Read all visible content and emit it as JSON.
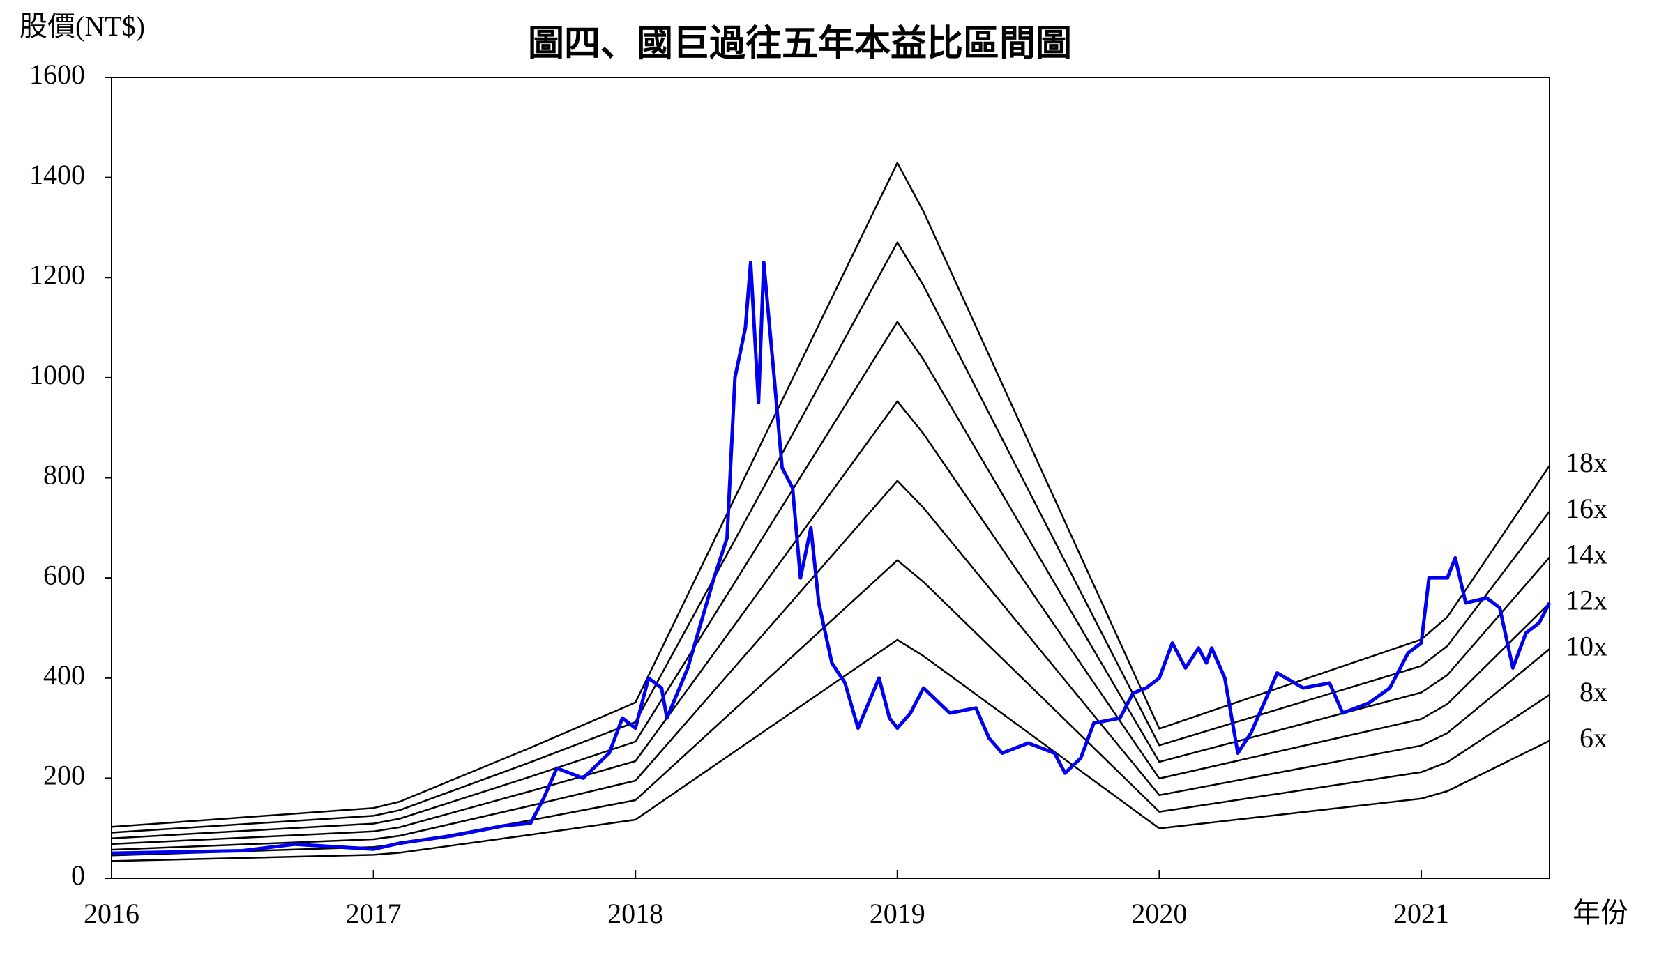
{
  "chart_data": {
    "type": "line",
    "title": "圖四、國巨過往五年本益比區間圖",
    "y_label": "股價(NT$)",
    "x_label": "年份",
    "xlim": [
      2016,
      2021.49
    ],
    "xticks": [
      2016,
      2017,
      2018,
      2019,
      2020,
      2021
    ],
    "ylim": [
      0,
      1600
    ],
    "yticks": [
      0,
      200,
      400,
      600,
      800,
      1000,
      1200,
      1400,
      1600
    ],
    "grid": false,
    "series": [
      {
        "name": "18x",
        "color": "#000000",
        "x": [
          2016,
          2017,
          2017.1,
          2017.6,
          2018,
          2019,
          2019.1,
          2020,
          2021,
          2021.1,
          2021.49
        ],
        "values": [
          102.6,
          140.4,
          153,
          261,
          351,
          1429.2,
          1332,
          298.8,
          477,
          522,
          824.4
        ]
      },
      {
        "name": "16x",
        "color": "#000000",
        "x": [
          2016,
          2017,
          2017.1,
          2017.6,
          2018,
          2019,
          2019.1,
          2020,
          2021,
          2021.1,
          2021.49
        ],
        "values": [
          91.2,
          124.8,
          136,
          232,
          312,
          1270.4,
          1184,
          265.6,
          424,
          464,
          732.8
        ]
      },
      {
        "name": "14x",
        "color": "#000000",
        "x": [
          2016,
          2017,
          2017.1,
          2017.6,
          2018,
          2019,
          2019.1,
          2020,
          2021,
          2021.1,
          2021.49
        ],
        "values": [
          79.8,
          109.2,
          119,
          203,
          273,
          1111.6,
          1036,
          232.4,
          371,
          406,
          641.2
        ]
      },
      {
        "name": "12x",
        "color": "#000000",
        "x": [
          2016,
          2017,
          2017.1,
          2017.6,
          2018,
          2019,
          2019.1,
          2020,
          2021,
          2021.1,
          2021.49
        ],
        "values": [
          68.4,
          93.6,
          102,
          174,
          234,
          952.8,
          888,
          199.2,
          318,
          348,
          549.6
        ]
      },
      {
        "name": "10x",
        "color": "#000000",
        "x": [
          2016,
          2017,
          2017.1,
          2017.6,
          2018,
          2019,
          2019.1,
          2020,
          2021,
          2021.1,
          2021.49
        ],
        "values": [
          57,
          78,
          85,
          145,
          195,
          794,
          740,
          166,
          265,
          290,
          458
        ]
      },
      {
        "name": "8x",
        "color": "#000000",
        "x": [
          2016,
          2017,
          2017.1,
          2017.6,
          2018,
          2019,
          2019.1,
          2020,
          2021,
          2021.1,
          2021.49
        ],
        "values": [
          45.6,
          62.4,
          68,
          116,
          156,
          635.2,
          592,
          132.8,
          212,
          232,
          366.4
        ]
      },
      {
        "name": "6x",
        "color": "#000000",
        "x": [
          2016,
          2017,
          2017.1,
          2017.6,
          2018,
          2019,
          2019.1,
          2020,
          2021,
          2021.1,
          2021.49
        ],
        "values": [
          34.2,
          46.8,
          51,
          87,
          117,
          476.4,
          444,
          99.6,
          159,
          174,
          274.8
        ]
      }
    ],
    "price": {
      "color": "#0000ee",
      "x": [
        2016,
        2016.5,
        2016.7,
        2017,
        2017.1,
        2017.3,
        2017.5,
        2017.6,
        2017.65,
        2017.7,
        2017.8,
        2017.9,
        2017.95,
        2018,
        2018.05,
        2018.1,
        2018.12,
        2018.2,
        2018.3,
        2018.35,
        2018.38,
        2018.42,
        2018.44,
        2018.47,
        2018.49,
        2018.53,
        2018.56,
        2018.6,
        2018.63,
        2018.67,
        2018.7,
        2018.75,
        2018.8,
        2018.85,
        2018.93,
        2018.97,
        2019,
        2019.05,
        2019.1,
        2019.2,
        2019.3,
        2019.35,
        2019.4,
        2019.5,
        2019.6,
        2019.64,
        2019.7,
        2019.75,
        2019.85,
        2019.9,
        2019.95,
        2020,
        2020.05,
        2020.1,
        2020.15,
        2020.18,
        2020.2,
        2020.25,
        2020.3,
        2020.35,
        2020.4,
        2020.45,
        2020.55,
        2020.65,
        2020.7,
        2020.8,
        2020.88,
        2020.95,
        2021,
        2021.03,
        2021.1,
        2021.13,
        2021.17,
        2021.25,
        2021.3,
        2021.35,
        2021.4,
        2021.45,
        2021.49
      ],
      "values": [
        50,
        55,
        68,
        58,
        70,
        85,
        105,
        110,
        160,
        220,
        200,
        250,
        320,
        300,
        400,
        380,
        320,
        420,
        600,
        680,
        1000,
        1100,
        1230,
        950,
        1230,
        1000,
        820,
        780,
        600,
        700,
        550,
        430,
        390,
        300,
        400,
        320,
        300,
        330,
        380,
        330,
        340,
        280,
        250,
        270,
        250,
        210,
        240,
        310,
        320,
        370,
        380,
        400,
        470,
        420,
        460,
        430,
        460,
        400,
        250,
        290,
        350,
        410,
        380,
        390,
        330,
        350,
        380,
        450,
        470,
        600,
        600,
        640,
        550,
        560,
        540,
        420,
        490,
        510,
        550
      ]
    }
  }
}
